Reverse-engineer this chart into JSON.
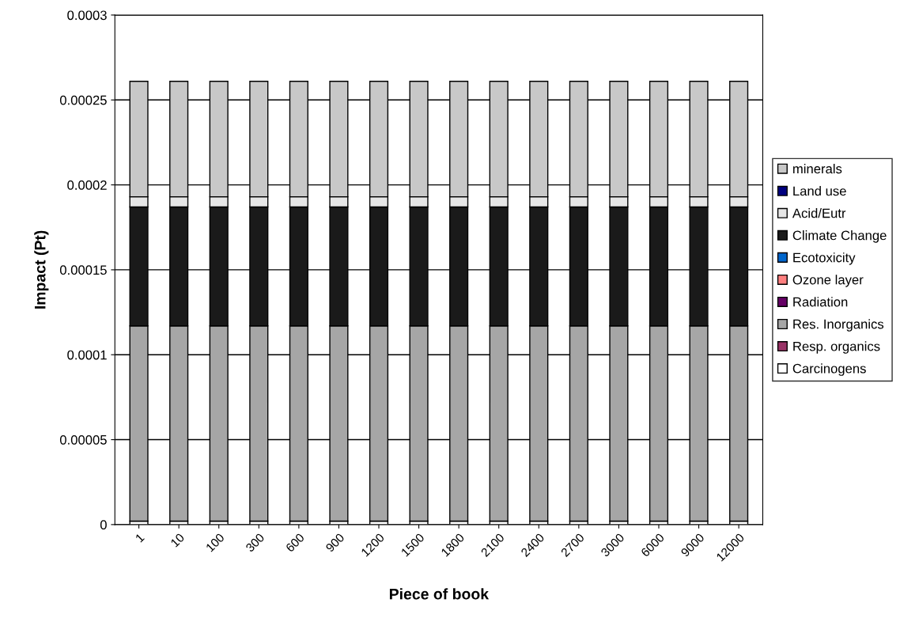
{
  "chart_data": {
    "type": "bar",
    "stacked": true,
    "xlabel": "Piece of book",
    "ylabel": "Impact (Pt)",
    "categories": [
      "1",
      "10",
      "100",
      "300",
      "600",
      "900",
      "1200",
      "1500",
      "1800",
      "2100",
      "2400",
      "2700",
      "3000",
      "6000",
      "9000",
      "12000"
    ],
    "series": [
      {
        "name": "Carcinogens",
        "color": "#ffffff",
        "values": [
          2e-06,
          2e-06,
          2e-06,
          2e-06,
          2e-06,
          2e-06,
          2e-06,
          2e-06,
          2e-06,
          2e-06,
          2e-06,
          2e-06,
          2e-06,
          2e-06,
          2e-06,
          2e-06
        ]
      },
      {
        "name": "Resp. organics",
        "color": "#993366",
        "values": [
          0,
          0,
          0,
          0,
          0,
          0,
          0,
          0,
          0,
          0,
          0,
          0,
          0,
          0,
          0,
          0
        ]
      },
      {
        "name": "Res. Inorganics",
        "color": "#a6a6a6",
        "values": [
          0.000115,
          0.000115,
          0.000115,
          0.000115,
          0.000115,
          0.000115,
          0.000115,
          0.000115,
          0.000115,
          0.000115,
          0.000115,
          0.000115,
          0.000115,
          0.000115,
          0.000115,
          0.000115
        ]
      },
      {
        "name": "Radiation",
        "color": "#660066",
        "values": [
          0,
          0,
          0,
          0,
          0,
          0,
          0,
          0,
          0,
          0,
          0,
          0,
          0,
          0,
          0,
          0
        ]
      },
      {
        "name": "Ozone layer",
        "color": "#ff8080",
        "values": [
          0,
          0,
          0,
          0,
          0,
          0,
          0,
          0,
          0,
          0,
          0,
          0,
          0,
          0,
          0,
          0
        ]
      },
      {
        "name": "Ecotoxicity",
        "color": "#0066cc",
        "values": [
          0,
          0,
          0,
          0,
          0,
          0,
          0,
          0,
          0,
          0,
          0,
          0,
          0,
          0,
          0,
          0
        ]
      },
      {
        "name": "Climate Change",
        "color": "#1a1a1a",
        "values": [
          7e-05,
          7e-05,
          7e-05,
          7e-05,
          7e-05,
          7e-05,
          7e-05,
          7e-05,
          7e-05,
          7e-05,
          7e-05,
          7e-05,
          7e-05,
          7e-05,
          7e-05,
          7e-05
        ]
      },
      {
        "name": "Acid/Eutr",
        "color": "#e6e6e6",
        "values": [
          6e-06,
          6e-06,
          6e-06,
          6e-06,
          6e-06,
          6e-06,
          6e-06,
          6e-06,
          6e-06,
          6e-06,
          6e-06,
          6e-06,
          6e-06,
          6e-06,
          6e-06,
          6e-06
        ]
      },
      {
        "name": "Land use",
        "color": "#000080",
        "values": [
          0,
          0,
          0,
          0,
          0,
          0,
          0,
          0,
          0,
          0,
          0,
          0,
          0,
          0,
          0,
          0
        ]
      },
      {
        "name": "minerals",
        "color": "#c8c8c8",
        "values": [
          6.8e-05,
          6.8e-05,
          6.8e-05,
          6.8e-05,
          6.8e-05,
          6.8e-05,
          6.8e-05,
          6.8e-05,
          6.8e-05,
          6.8e-05,
          6.8e-05,
          6.8e-05,
          6.8e-05,
          6.8e-05,
          6.8e-05,
          6.8e-05
        ]
      }
    ],
    "ylim": [
      0,
      0.0003
    ],
    "yticks": [
      0,
      {
        "value": 5e-05,
        "label": "0.00005"
      },
      0.0001,
      0.00015,
      0.0002,
      0.00025,
      0.0003
    ],
    "grid": "y",
    "legend": "right"
  }
}
